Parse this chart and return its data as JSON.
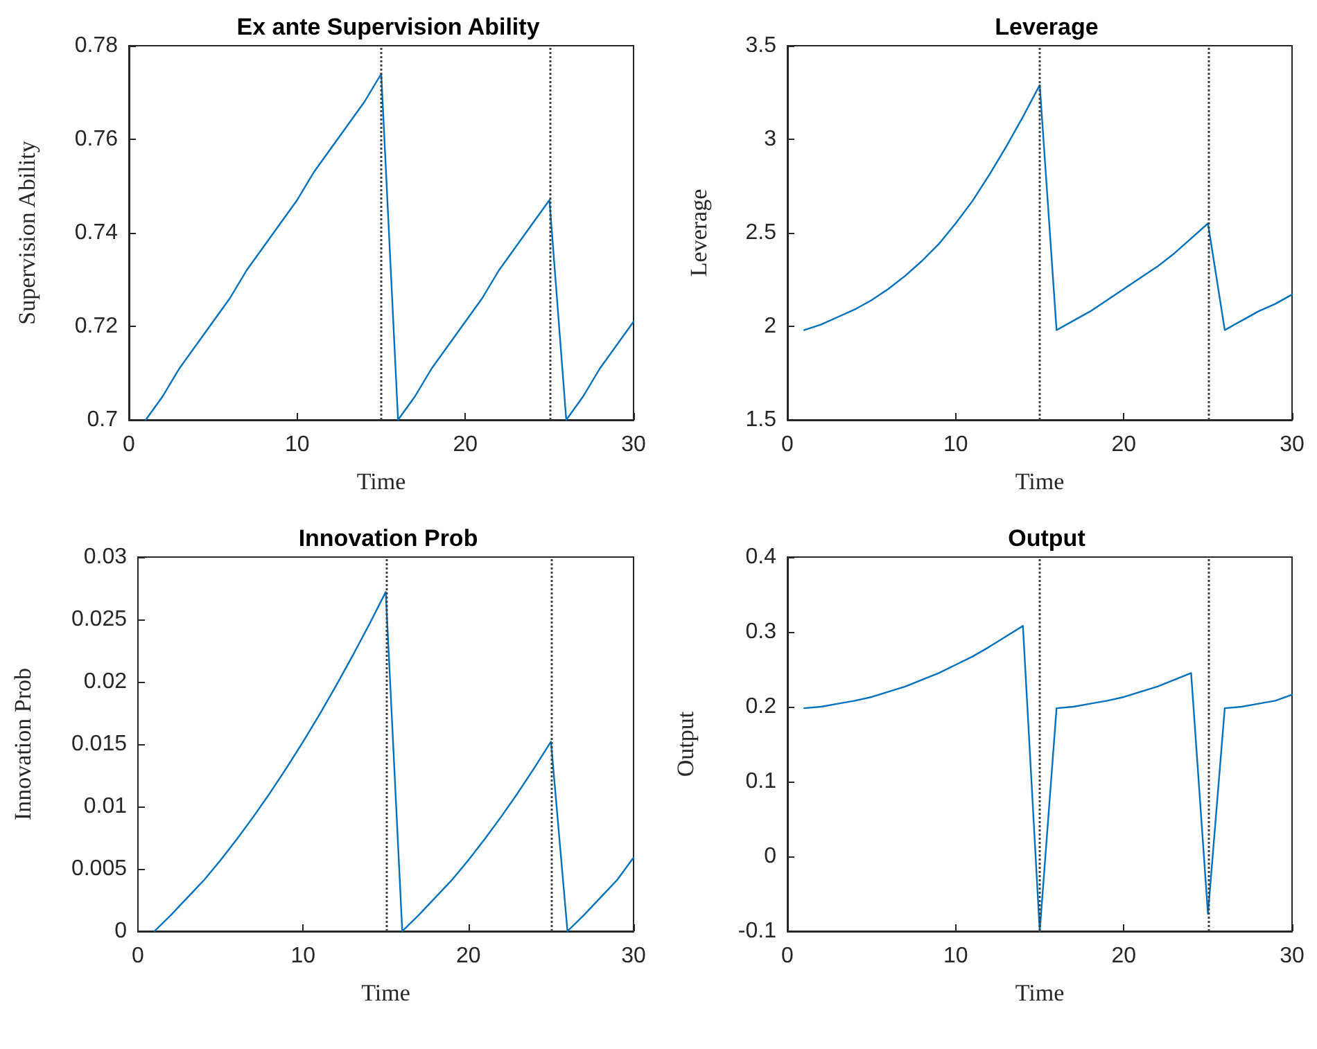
{
  "chart_data": [
    {
      "type": "line",
      "title": "Ex ante Supervision Ability",
      "xlabel": "Time",
      "ylabel": "Supervision Ability",
      "x": [
        1,
        2,
        3,
        4,
        5,
        6,
        7,
        8,
        9,
        10,
        11,
        12,
        13,
        14,
        15,
        16,
        17,
        18,
        19,
        20,
        21,
        22,
        23,
        24,
        25,
        26,
        27,
        28,
        29,
        30
      ],
      "series": [
        {
          "color": "#0072bd",
          "values": [
            0.7,
            0.705,
            0.711,
            0.716,
            0.721,
            0.726,
            0.732,
            0.737,
            0.742,
            0.747,
            0.753,
            0.758,
            0.763,
            0.768,
            0.774,
            0.7,
            0.705,
            0.711,
            0.716,
            0.721,
            0.726,
            0.732,
            0.737,
            0.742,
            0.747,
            0.7,
            0.705,
            0.711,
            0.716,
            0.721
          ]
        }
      ],
      "xlim": [
        0,
        30
      ],
      "xticks": [
        0,
        10,
        20,
        30
      ],
      "ylim": [
        0.7,
        0.78
      ],
      "yticks": [
        0.7,
        0.72,
        0.74,
        0.76,
        0.78
      ],
      "ref_lines": [
        {
          "axis": "x",
          "value": 15,
          "color": "#404040",
          "line_style": "dotted"
        },
        {
          "axis": "x",
          "value": 25,
          "color": "#404040",
          "line_style": "dotted"
        }
      ]
    },
    {
      "type": "line",
      "title": "Leverage",
      "xlabel": "Time",
      "ylabel": "Leverage",
      "x": [
        1,
        2,
        3,
        4,
        5,
        6,
        7,
        8,
        9,
        10,
        11,
        12,
        13,
        14,
        15,
        16,
        17,
        18,
        19,
        20,
        21,
        22,
        23,
        24,
        25,
        26,
        27,
        28,
        29,
        30
      ],
      "series": [
        {
          "color": "#0072bd",
          "values": [
            1.98,
            2.01,
            2.05,
            2.09,
            2.14,
            2.2,
            2.27,
            2.35,
            2.44,
            2.55,
            2.67,
            2.81,
            2.96,
            3.12,
            3.29,
            1.98,
            2.03,
            2.08,
            2.14,
            2.2,
            2.26,
            2.32,
            2.39,
            2.47,
            2.55,
            1.98,
            2.03,
            2.08,
            2.12,
            2.17
          ]
        }
      ],
      "xlim": [
        0,
        30
      ],
      "xticks": [
        0,
        10,
        20,
        30
      ],
      "ylim": [
        1.5,
        3.5
      ],
      "yticks": [
        1.5,
        2,
        2.5,
        3,
        3.5
      ],
      "ref_lines": [
        {
          "axis": "x",
          "value": 15,
          "color": "#404040",
          "line_style": "dotted"
        },
        {
          "axis": "x",
          "value": 25,
          "color": "#404040",
          "line_style": "dotted"
        }
      ]
    },
    {
      "type": "line",
      "title": "Innovation Prob",
      "xlabel": "Time",
      "ylabel": "Innovation Prob",
      "x": [
        1,
        2,
        3,
        4,
        5,
        6,
        7,
        8,
        9,
        10,
        11,
        12,
        13,
        14,
        15,
        16,
        17,
        18,
        19,
        20,
        21,
        22,
        23,
        24,
        25,
        26,
        27,
        28,
        29,
        30
      ],
      "series": [
        {
          "color": "#0072bd",
          "values": [
            0,
            0.0013,
            0.0027,
            0.0041,
            0.0057,
            0.0074,
            0.0092,
            0.0111,
            0.0131,
            0.0152,
            0.0174,
            0.0197,
            0.0221,
            0.0246,
            0.0272,
            0,
            0.0013,
            0.0027,
            0.0041,
            0.0057,
            0.0074,
            0.0092,
            0.0111,
            0.0131,
            0.0152,
            0,
            0.0013,
            0.0027,
            0.0041,
            0.0059
          ]
        }
      ],
      "xlim": [
        0,
        30
      ],
      "xticks": [
        0,
        10,
        20,
        30
      ],
      "ylim": [
        0,
        0.03
      ],
      "yticks": [
        0,
        0.005,
        0.01,
        0.015,
        0.02,
        0.025,
        0.03
      ],
      "ref_lines": [
        {
          "axis": "x",
          "value": 15,
          "color": "#404040",
          "line_style": "dotted"
        },
        {
          "axis": "x",
          "value": 25,
          "color": "#404040",
          "line_style": "dotted"
        }
      ]
    },
    {
      "type": "line",
      "title": "Output",
      "xlabel": "Time",
      "ylabel": "Output",
      "x": [
        1,
        2,
        3,
        4,
        5,
        6,
        7,
        8,
        9,
        10,
        11,
        12,
        13,
        14,
        15,
        16,
        17,
        18,
        19,
        20,
        21,
        22,
        23,
        24,
        25,
        26,
        27,
        28,
        29,
        30
      ],
      "series": [
        {
          "color": "#0072bd",
          "values": [
            0.198,
            0.2,
            0.204,
            0.208,
            0.213,
            0.22,
            0.227,
            0.236,
            0.245,
            0.256,
            0.267,
            0.28,
            0.294,
            0.308,
            -0.1,
            0.198,
            0.2,
            0.204,
            0.208,
            0.213,
            0.22,
            0.227,
            0.236,
            0.245,
            -0.077,
            0.198,
            0.2,
            0.204,
            0.208,
            0.216
          ]
        }
      ],
      "xlim": [
        0,
        30
      ],
      "xticks": [
        0,
        10,
        20,
        30
      ],
      "ylim": [
        -0.1,
        0.4
      ],
      "yticks": [
        -0.1,
        0,
        0.1,
        0.2,
        0.3,
        0.4
      ],
      "ref_lines": [
        {
          "axis": "x",
          "value": 15,
          "color": "#404040",
          "line_style": "dotted"
        },
        {
          "axis": "x",
          "value": 25,
          "color": "#404040",
          "line_style": "dotted"
        }
      ]
    }
  ]
}
